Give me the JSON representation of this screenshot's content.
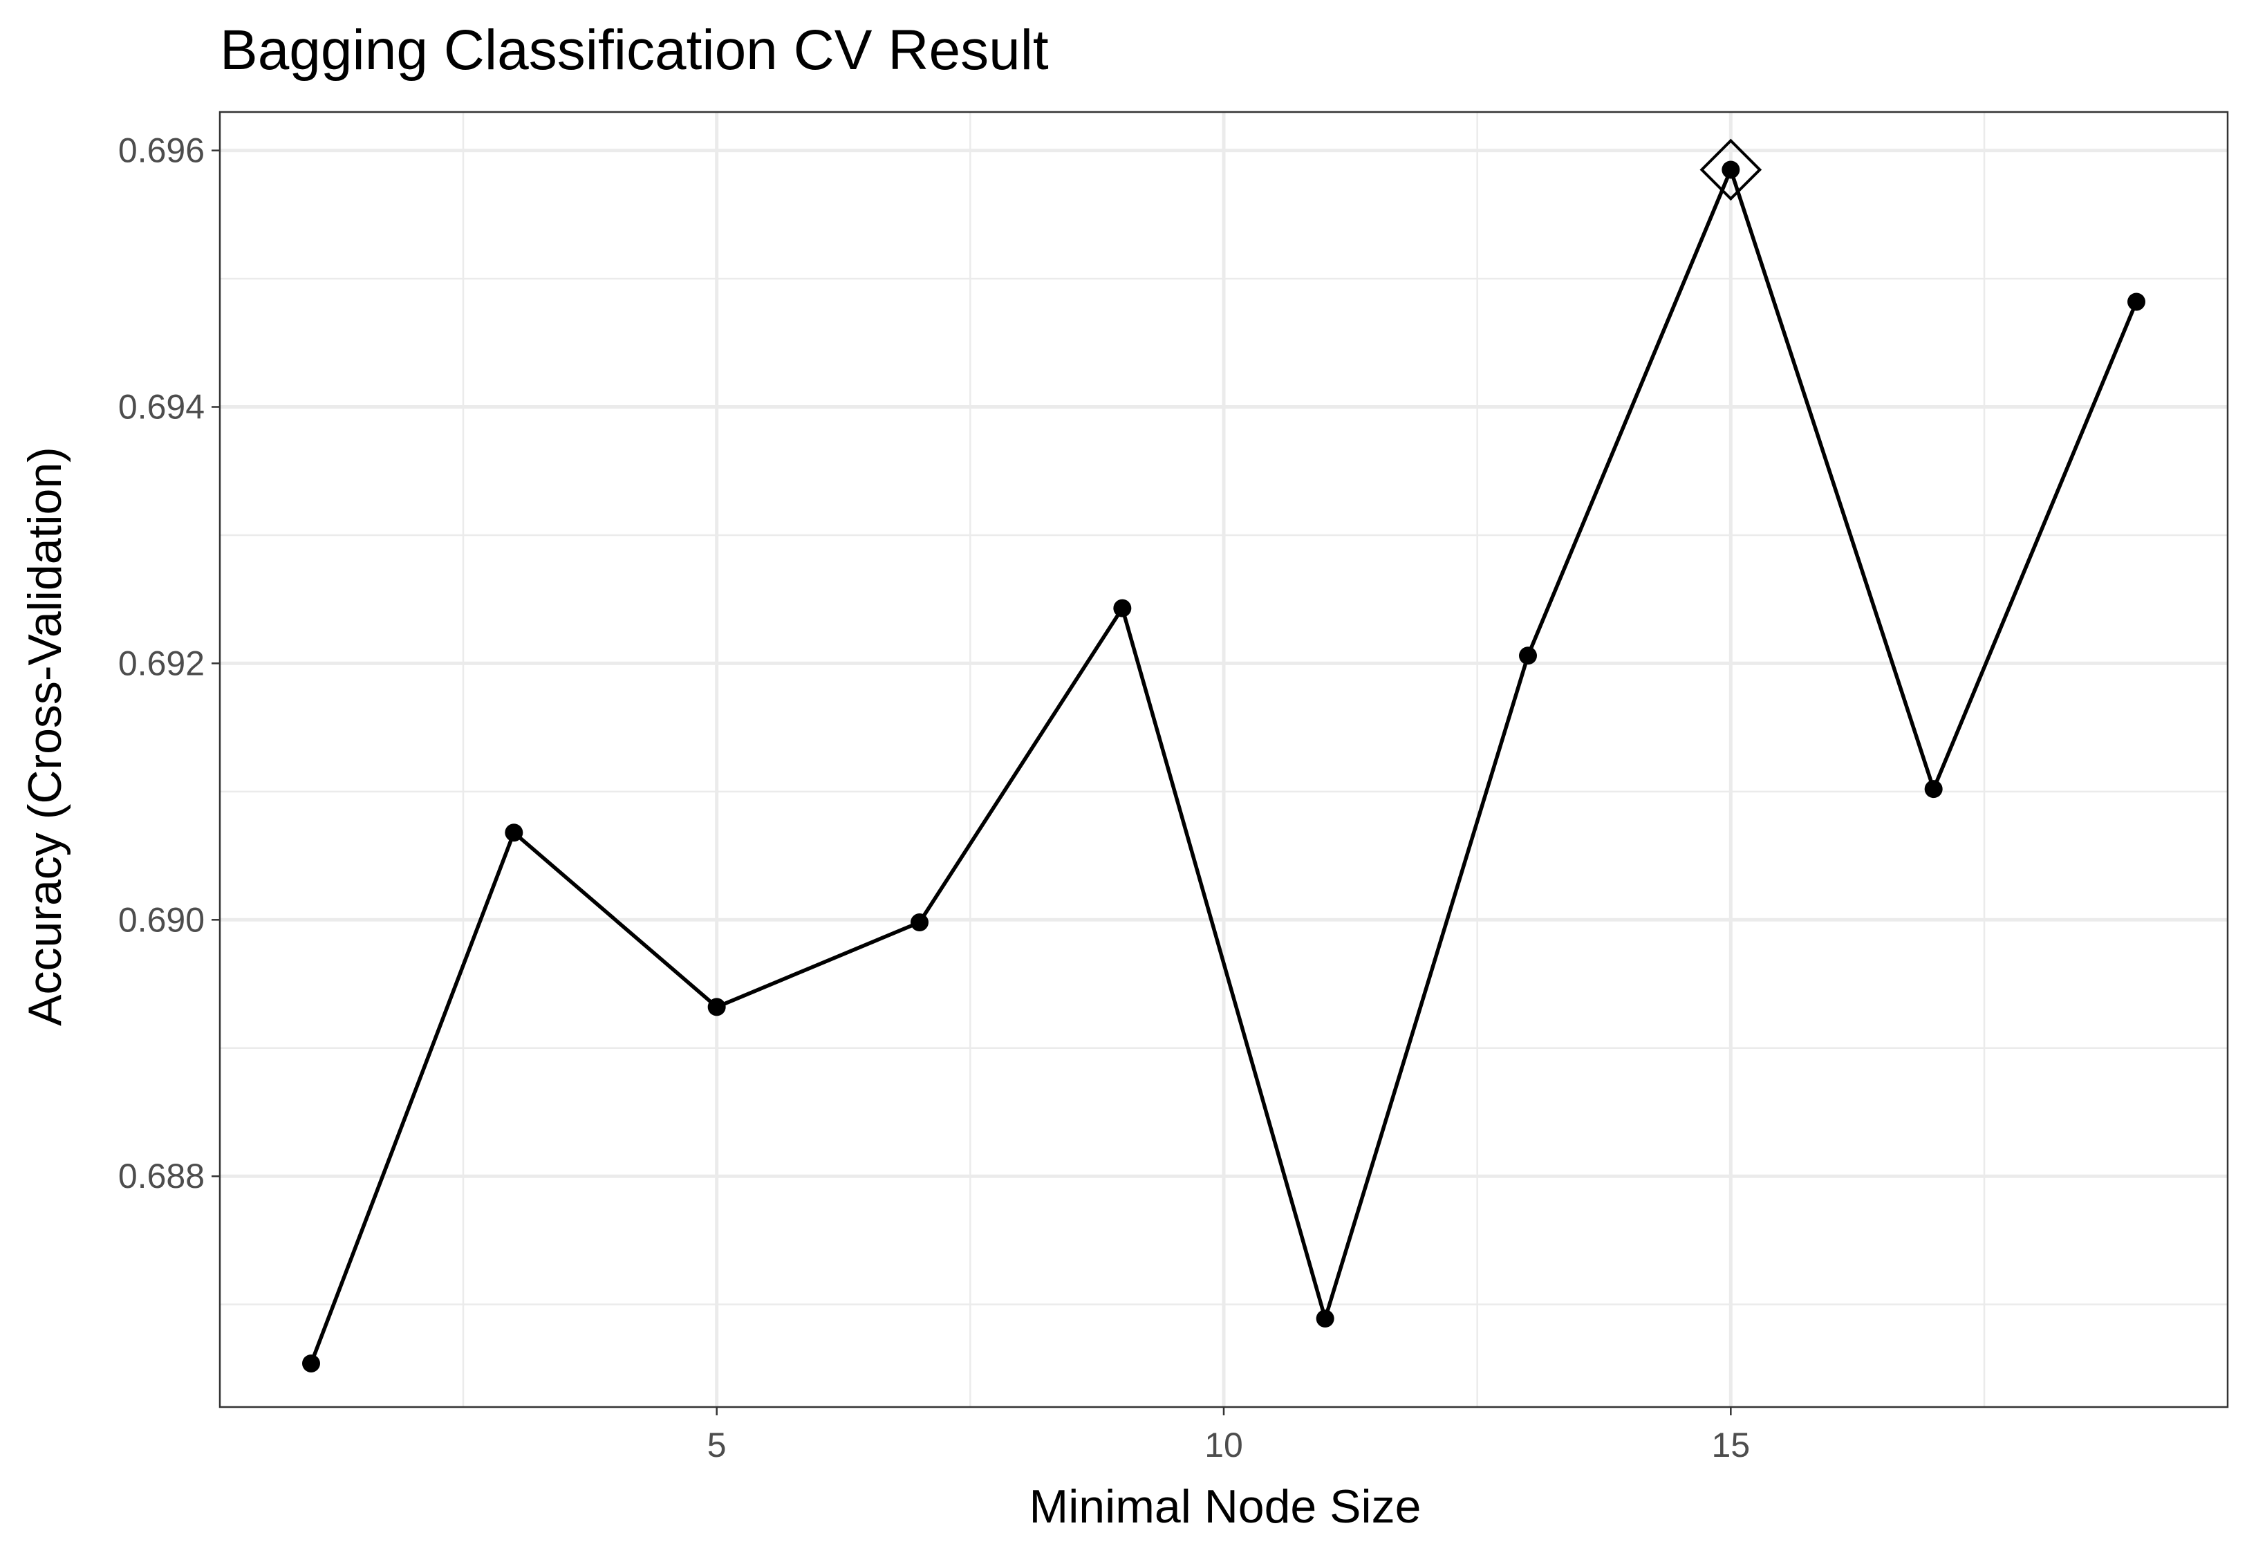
{
  "chart_data": {
    "type": "line",
    "title": "Bagging Classification CV Result",
    "xlabel": "Minimal Node Size",
    "ylabel": "Accuracy (Cross-Validation)",
    "x": [
      1,
      3,
      5,
      7,
      9,
      11,
      13,
      15,
      17,
      19
    ],
    "y": [
      0.68654,
      0.69068,
      0.68932,
      0.68998,
      0.69243,
      0.68689,
      0.69206,
      0.69585,
      0.69102,
      0.69482
    ],
    "xlim": [
      0.1,
      19.9
    ],
    "ylim": [
      0.6862,
      0.6963
    ],
    "x_ticks": [
      5,
      10,
      15
    ],
    "x_tick_labels": [
      "5",
      "10",
      "15"
    ],
    "x_minor_ticks": [
      2.5,
      7.5,
      12.5,
      17.5
    ],
    "y_ticks": [
      0.688,
      0.69,
      0.692,
      0.694,
      0.696
    ],
    "y_tick_labels": [
      "0.688",
      "0.690",
      "0.692",
      "0.694",
      "0.696"
    ],
    "y_minor_ticks": [
      0.687,
      0.689,
      0.691,
      0.693,
      0.695
    ],
    "highlight": {
      "x": 15,
      "y": 0.69585,
      "marker": "diamond-open"
    },
    "grid": true,
    "legend": "none",
    "colors": {
      "line": "#000000",
      "points": "#000000",
      "grid": "#ebebeb",
      "border": "#333333"
    }
  }
}
